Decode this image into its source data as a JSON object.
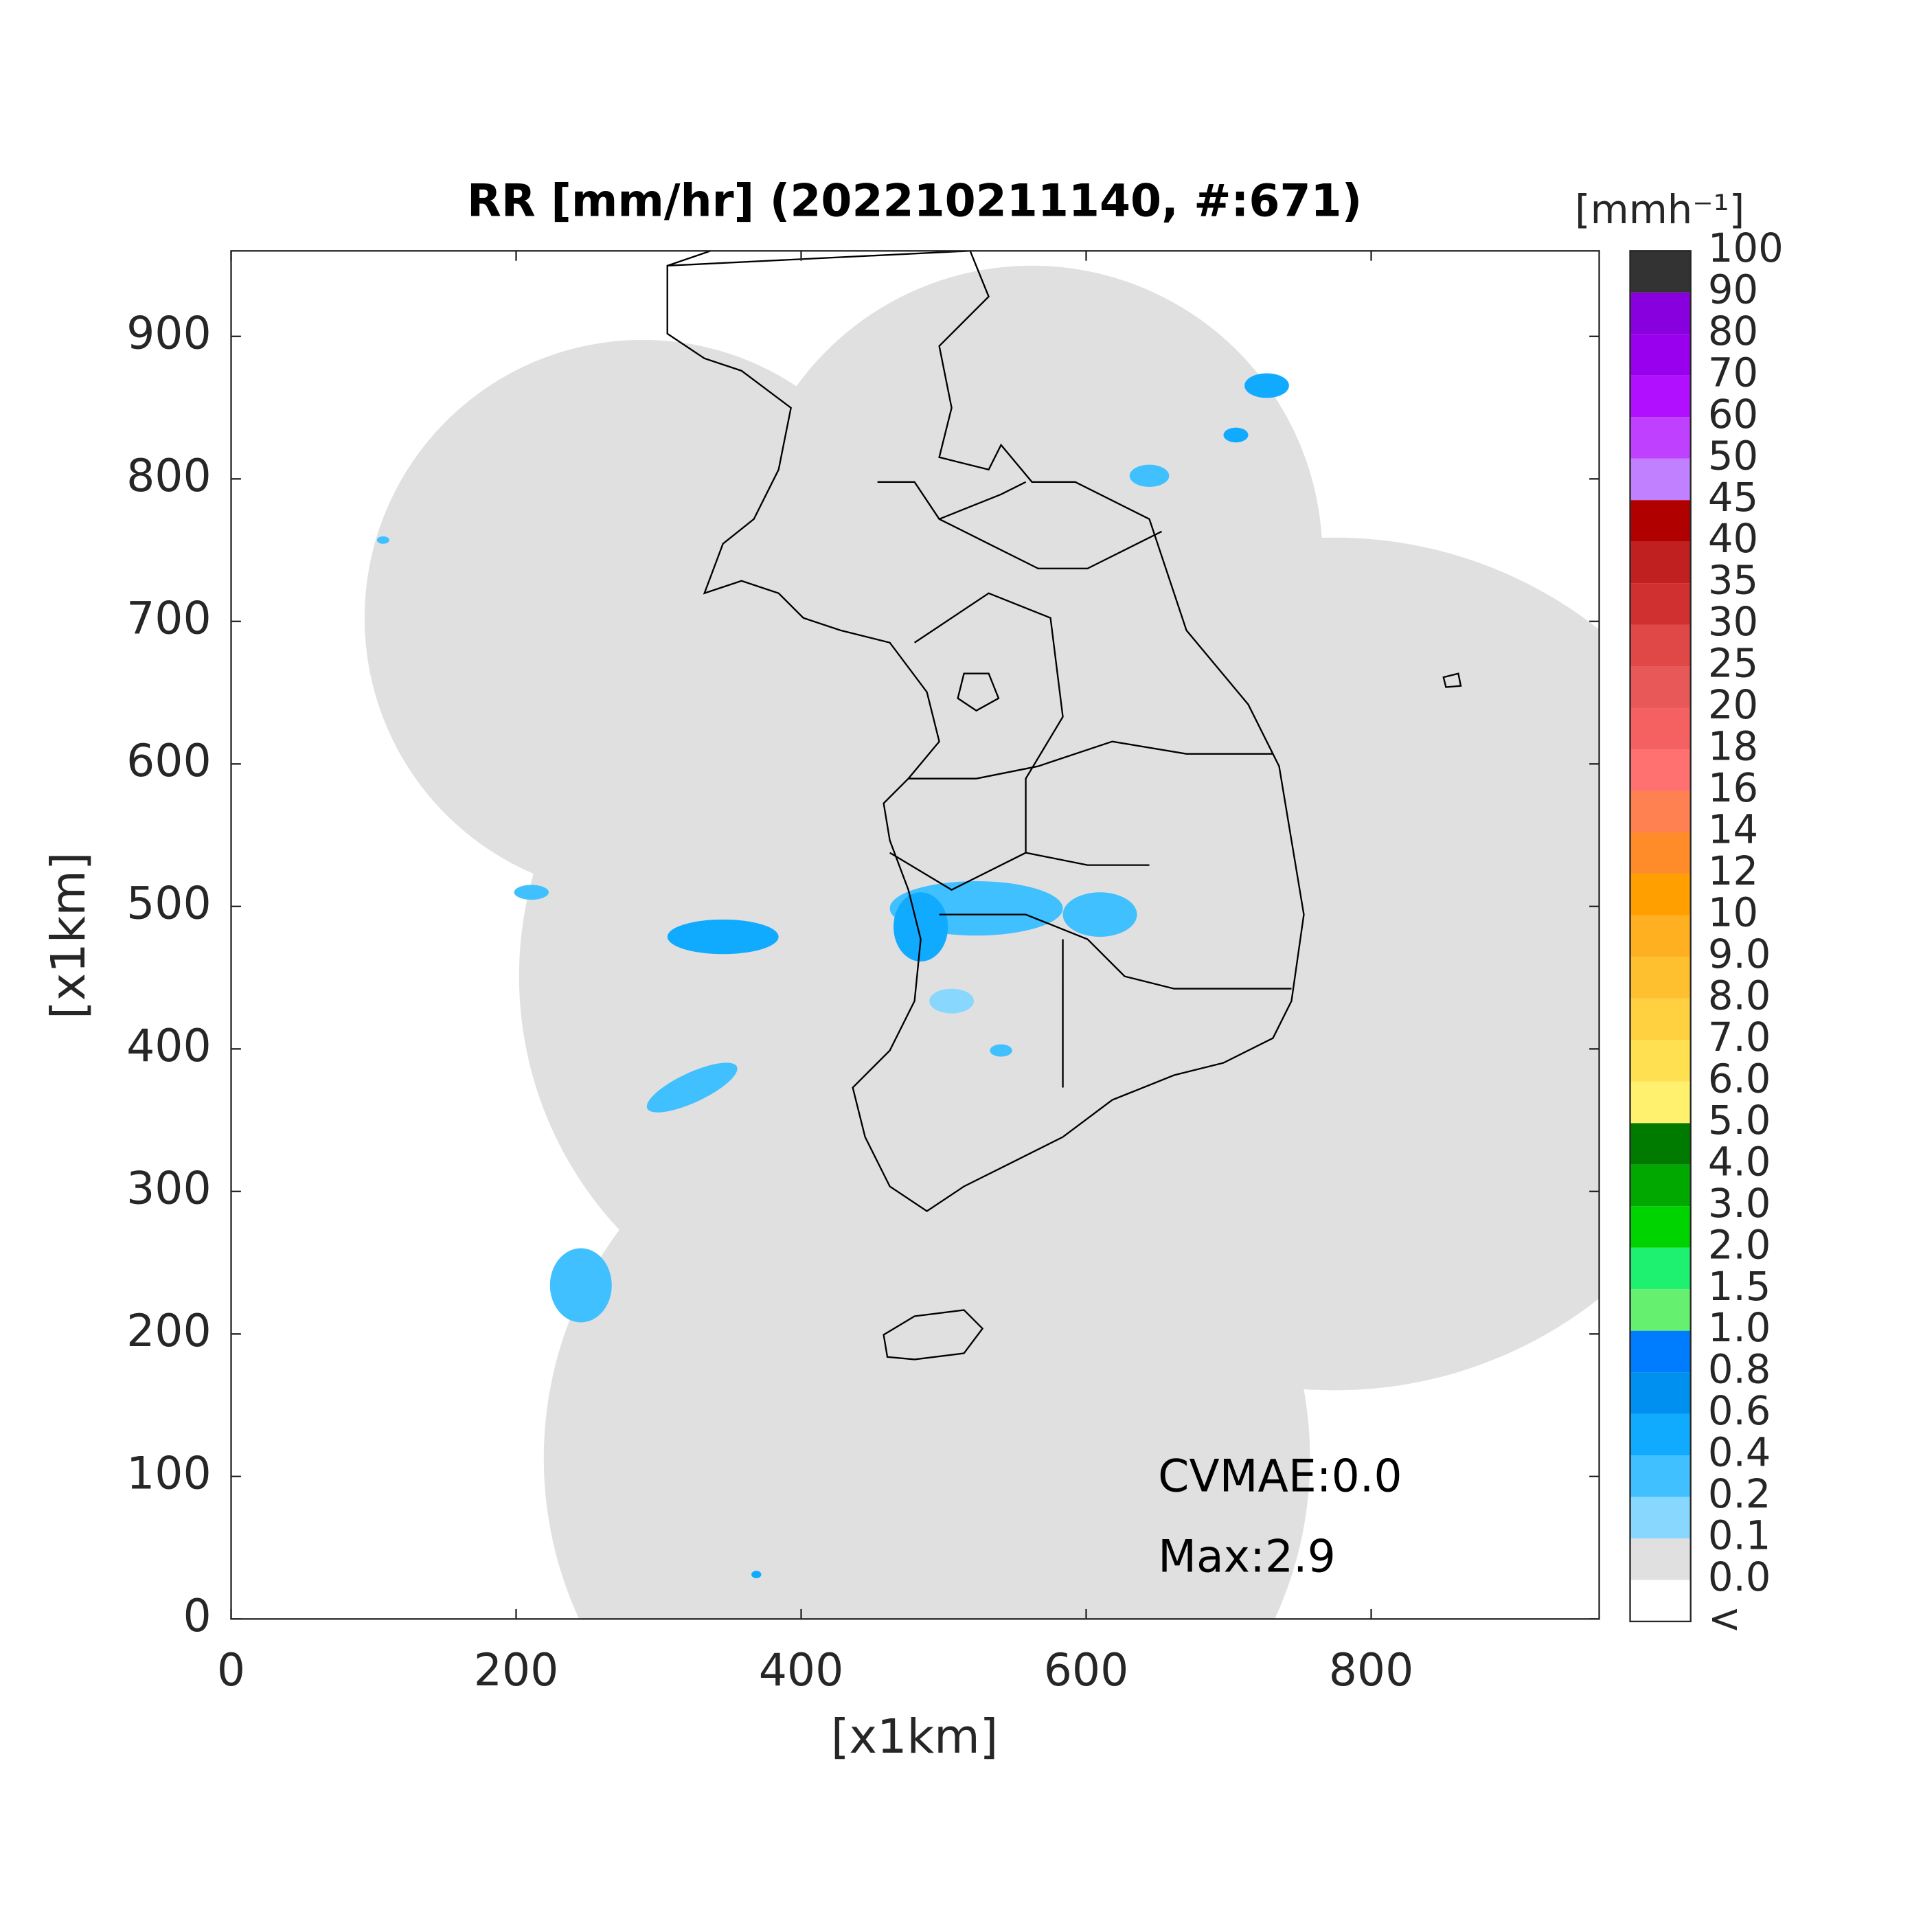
{
  "chart_data": {
    "type": "map",
    "title": "RR [mm/hr] (202210211140, #:671)",
    "xlabel": "[x1km]",
    "ylabel": "[x1km]",
    "xlim": [
      0,
      960
    ],
    "ylim": [
      0,
      960
    ],
    "xticks": [
      0,
      200,
      400,
      600,
      800
    ],
    "yticks": [
      0,
      100,
      200,
      300,
      400,
      500,
      600,
      700,
      800,
      900
    ],
    "annotations": [
      "CVMAE:0.0",
      "Max:2.9"
    ],
    "colorbar": {
      "label": "[mmh⁻¹]",
      "labels": [
        "<",
        "0.0",
        "0.1",
        "0.2",
        "0.4",
        "0.6",
        "0.8",
        "1.0",
        "1.5",
        "2.0",
        "3.0",
        "4.0",
        "5.0",
        "6.0",
        "7.0",
        "8.0",
        "9.0",
        "10",
        "12",
        "14",
        "16",
        "18",
        "20",
        "25",
        "30",
        "35",
        "40",
        "45",
        "50",
        "60",
        "70",
        "80",
        "90",
        "100"
      ],
      "colors": [
        "#ffffff",
        "#e0e0e0",
        "#87d7ff",
        "#40c0ff",
        "#10aaff",
        "#0090f0",
        "#007cff",
        "#66f070",
        "#1ef070",
        "#00d400",
        "#00a800",
        "#007b00",
        "#fff06e",
        "#ffe050",
        "#ffd040",
        "#ffc030",
        "#ffb020",
        "#ffa000",
        "#ff8c28",
        "#ff8050",
        "#ff7070",
        "#f56060",
        "#e85858",
        "#e04848",
        "#d03030",
        "#c02020",
        "#b00000",
        "#c080ff",
        "#c040ff",
        "#b010ff",
        "#9900ee",
        "#8800dd",
        "#333333"
      ]
    }
  }
}
